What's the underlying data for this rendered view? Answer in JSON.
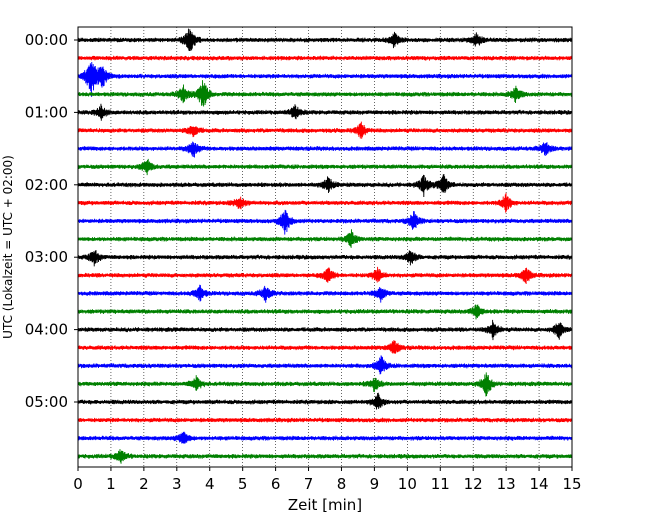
{
  "chart_data": {
    "type": "line",
    "chart_style": "helicorder seismogram",
    "xlabel": "Zeit  [min]",
    "ylabel": "UTC (Lokalzeit = UTC + 02:00)",
    "xlim": [
      0,
      15
    ],
    "x_ticks": [
      0,
      1,
      2,
      3,
      4,
      5,
      6,
      7,
      8,
      9,
      10,
      11,
      12,
      13,
      14,
      15
    ],
    "x_tick_labels": [
      "0",
      "1",
      "2",
      "3",
      "4",
      "5",
      "6",
      "7",
      "8",
      "9",
      "10",
      "11",
      "12",
      "13",
      "14",
      "15"
    ],
    "y_tick_labels": [
      "00:00",
      "01:00",
      "02:00",
      "03:00",
      "04:00",
      "05:00"
    ],
    "minutes_per_line": 15,
    "lines_per_hour": 4,
    "line_colors": [
      "#000000",
      "#ff0000",
      "#0000ff",
      "#008000"
    ],
    "grid": "vertical dotted lines at each minute",
    "series": [
      {
        "start": "00:00",
        "color": "#000000",
        "events": [
          {
            "t": 3.4,
            "amp": 1.6
          },
          {
            "t": 9.6,
            "amp": 0.8
          },
          {
            "t": 12.1,
            "amp": 0.8
          }
        ]
      },
      {
        "start": "00:15",
        "color": "#ff0000",
        "events": []
      },
      {
        "start": "00:30",
        "color": "#0000ff",
        "events": [
          {
            "t": 0.4,
            "amp": 2.6
          },
          {
            "t": 0.75,
            "amp": 1.2
          }
        ]
      },
      {
        "start": "00:45",
        "color": "#008000",
        "events": [
          {
            "t": 3.2,
            "amp": 1.0
          },
          {
            "t": 3.8,
            "amp": 1.8
          },
          {
            "t": 13.3,
            "amp": 0.9
          }
        ]
      },
      {
        "start": "01:00",
        "color": "#000000",
        "events": [
          {
            "t": 0.7,
            "amp": 0.8
          },
          {
            "t": 6.6,
            "amp": 0.8
          }
        ]
      },
      {
        "start": "01:15",
        "color": "#ff0000",
        "events": [
          {
            "t": 3.5,
            "amp": 0.8
          },
          {
            "t": 8.6,
            "amp": 0.9
          }
        ]
      },
      {
        "start": "01:30",
        "color": "#0000ff",
        "events": [
          {
            "t": 3.5,
            "amp": 1.0
          },
          {
            "t": 14.2,
            "amp": 0.8
          }
        ]
      },
      {
        "start": "01:45",
        "color": "#008000",
        "events": [
          {
            "t": 2.1,
            "amp": 0.9
          }
        ]
      },
      {
        "start": "02:00",
        "color": "#000000",
        "events": [
          {
            "t": 7.6,
            "amp": 0.9
          },
          {
            "t": 10.5,
            "amp": 1.1
          },
          {
            "t": 11.1,
            "amp": 1.1
          }
        ]
      },
      {
        "start": "02:15",
        "color": "#ff0000",
        "events": [
          {
            "t": 4.9,
            "amp": 0.8
          },
          {
            "t": 13.0,
            "amp": 1.0
          }
        ]
      },
      {
        "start": "02:30",
        "color": "#0000ff",
        "events": [
          {
            "t": 6.3,
            "amp": 1.5
          },
          {
            "t": 10.2,
            "amp": 1.1
          }
        ]
      },
      {
        "start": "02:45",
        "color": "#008000",
        "events": [
          {
            "t": 8.3,
            "amp": 1.0
          }
        ]
      },
      {
        "start": "03:00",
        "color": "#000000",
        "events": [
          {
            "t": 0.5,
            "amp": 0.9
          },
          {
            "t": 10.1,
            "amp": 0.9
          }
        ]
      },
      {
        "start": "03:15",
        "color": "#ff0000",
        "events": [
          {
            "t": 7.6,
            "amp": 0.9
          },
          {
            "t": 9.1,
            "amp": 0.8
          },
          {
            "t": 13.6,
            "amp": 0.9
          }
        ]
      },
      {
        "start": "03:30",
        "color": "#0000ff",
        "events": [
          {
            "t": 3.7,
            "amp": 0.9
          },
          {
            "t": 5.7,
            "amp": 0.9
          },
          {
            "t": 9.2,
            "amp": 0.9
          }
        ]
      },
      {
        "start": "03:45",
        "color": "#008000",
        "events": [
          {
            "t": 12.1,
            "amp": 0.8
          }
        ]
      },
      {
        "start": "04:00",
        "color": "#000000",
        "events": [
          {
            "t": 12.6,
            "amp": 1.0
          },
          {
            "t": 14.6,
            "amp": 1.0
          }
        ]
      },
      {
        "start": "04:15",
        "color": "#ff0000",
        "events": [
          {
            "t": 9.6,
            "amp": 0.8
          }
        ]
      },
      {
        "start": "04:30",
        "color": "#0000ff",
        "events": [
          {
            "t": 9.2,
            "amp": 1.1
          }
        ]
      },
      {
        "start": "04:45",
        "color": "#008000",
        "events": [
          {
            "t": 3.6,
            "amp": 0.8
          },
          {
            "t": 9.0,
            "amp": 0.8
          },
          {
            "t": 12.4,
            "amp": 1.4
          }
        ]
      },
      {
        "start": "05:00",
        "color": "#000000",
        "events": [
          {
            "t": 9.1,
            "amp": 0.9
          }
        ]
      },
      {
        "start": "05:15",
        "color": "#ff0000",
        "events": []
      },
      {
        "start": "05:30",
        "color": "#0000ff",
        "events": [
          {
            "t": 3.2,
            "amp": 0.8
          }
        ]
      },
      {
        "start": "05:45",
        "color": "#008000",
        "events": [
          {
            "t": 1.3,
            "amp": 0.8
          }
        ]
      }
    ]
  }
}
